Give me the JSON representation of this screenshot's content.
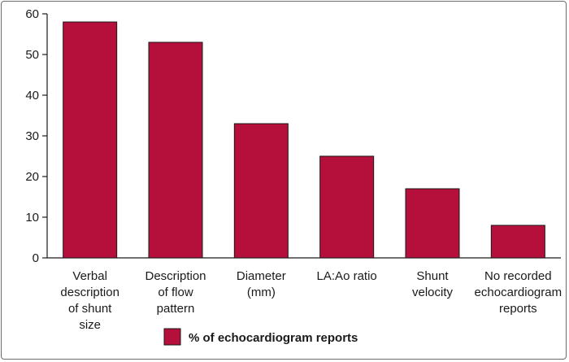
{
  "chart_data": {
    "type": "bar",
    "categories": [
      [
        "Verbal",
        "description",
        "of shunt",
        "size"
      ],
      [
        "Description",
        "of flow",
        "pattern"
      ],
      [
        "Diameter",
        "(mm)"
      ],
      [
        "LA:Ao ratio"
      ],
      [
        "Shunt",
        "velocity"
      ],
      [
        "No recorded",
        "echocardiogram",
        "reports"
      ]
    ],
    "series": [
      {
        "name": "% of echocardiogram reports",
        "values": [
          58,
          53,
          33,
          25,
          17,
          8
        ]
      }
    ],
    "yticks": [
      0,
      10,
      20,
      30,
      40,
      50,
      60
    ],
    "ylim": [
      0,
      60
    ],
    "xlabel": "",
    "ylabel": "",
    "grid": false,
    "legend_position": "bottom",
    "bar_color": "#b5103c"
  }
}
